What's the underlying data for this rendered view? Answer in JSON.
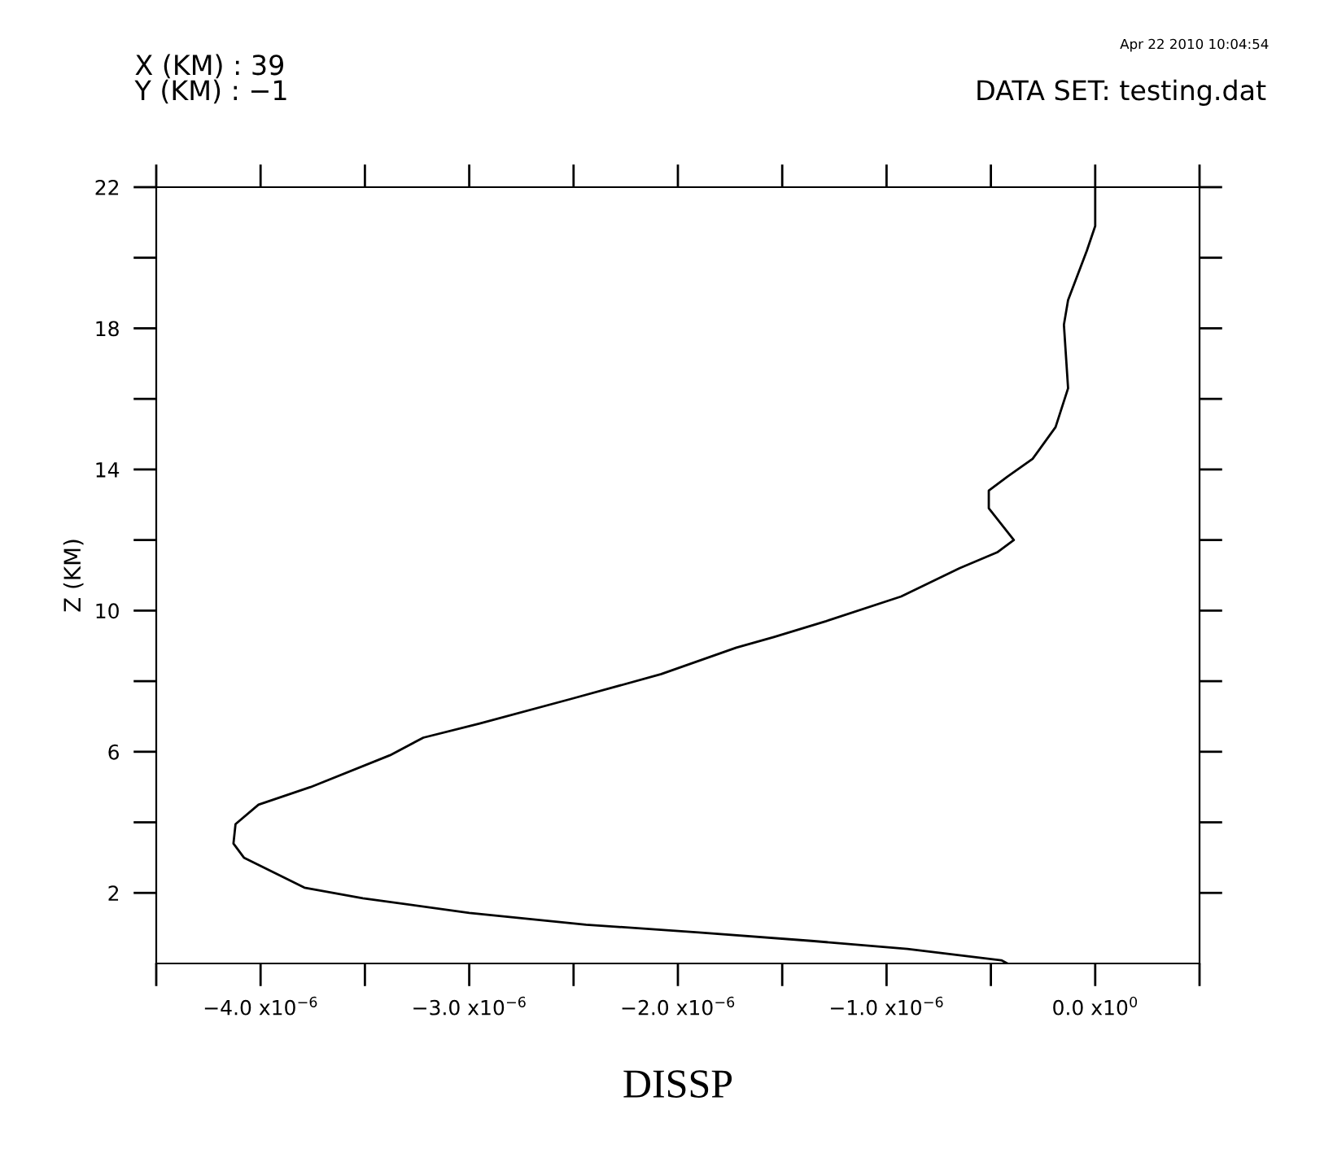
{
  "chart_data": {
    "type": "line",
    "xlabel": "DISSP",
    "ylabel": "Z (KM)",
    "annotations": [
      "X (KM) : 39",
      "Y (KM) : −1",
      "DATA SET: testing.dat",
      "Apr 22 2010 10:04:54"
    ],
    "series": [
      {
        "color": "#000000",
        "x": [
          0.0,
          0.0,
          -4e-08,
          -1.3e-07,
          -1.5e-07,
          -1.3e-07,
          -1.9e-07,
          -3e-07,
          -4.2e-07,
          -5.1e-07,
          -5.1e-07,
          -3.9e-07,
          -4.7e-07,
          -6.5e-07,
          -9.3e-07,
          -1.29e-06,
          -1.54e-06,
          -1.72e-06,
          -2.08e-06,
          -2.51e-06,
          -2.95e-06,
          -3.22e-06,
          -3.38e-06,
          -3.76e-06,
          -4.01e-06,
          -4.12e-06,
          -4.13e-06,
          -4.08e-06,
          -3.79e-06,
          -3.51e-06,
          -3e-06,
          -2.44e-06,
          -1.9e-06,
          -1.36e-06,
          -9e-07,
          -4.5e-07,
          -4.2e-07
        ],
        "values": [
          22.0,
          20.9,
          20.2,
          18.8,
          18.1,
          16.3,
          15.2,
          14.3,
          13.8,
          13.4,
          12.9,
          12.0,
          11.65,
          11.2,
          10.4,
          9.7,
          9.25,
          8.95,
          8.2,
          7.5,
          6.8,
          6.4,
          5.9,
          5.0,
          4.5,
          3.95,
          3.4,
          3.0,
          2.15,
          1.85,
          1.43,
          1.1,
          0.88,
          0.64,
          0.41,
          0.09,
          0.0
        ]
      }
    ],
    "xlim": [
      -4.5e-06,
      5e-07
    ],
    "xticks": [
      {
        "value": -4.5e-06,
        "label": null
      },
      {
        "value": -4e-06,
        "label": "−4.0 x10$^{−6}$"
      },
      {
        "value": -3.5e-06,
        "label": null
      },
      {
        "value": -3e-06,
        "label": "−3.0 x10$^{−6}$"
      },
      {
        "value": -2.5e-06,
        "label": null
      },
      {
        "value": -2e-06,
        "label": "−2.0 x10$^{−6}$"
      },
      {
        "value": -1.5e-06,
        "label": null
      },
      {
        "value": -1e-06,
        "label": "−1.0 x10$^{−6}$"
      },
      {
        "value": -5e-07,
        "label": null
      },
      {
        "value": 0.0,
        "label": "0.0 x10$^{0}$"
      },
      {
        "value": 5e-07,
        "label": null
      }
    ],
    "ylim": [
      0,
      22
    ],
    "yticks": [
      {
        "value": 2,
        "label": "2"
      },
      {
        "value": 4,
        "label": null
      },
      {
        "value": 6,
        "label": "6"
      },
      {
        "value": 8,
        "label": null
      },
      {
        "value": 10,
        "label": "10"
      },
      {
        "value": 12,
        "label": null
      },
      {
        "value": 14,
        "label": "14"
      },
      {
        "value": 16,
        "label": null
      },
      {
        "value": 18,
        "label": "18"
      },
      {
        "value": 20,
        "label": null
      },
      {
        "value": 22,
        "label": "22"
      }
    ],
    "grid": false,
    "legend": false,
    "marker": "none",
    "line_style": "solid"
  }
}
